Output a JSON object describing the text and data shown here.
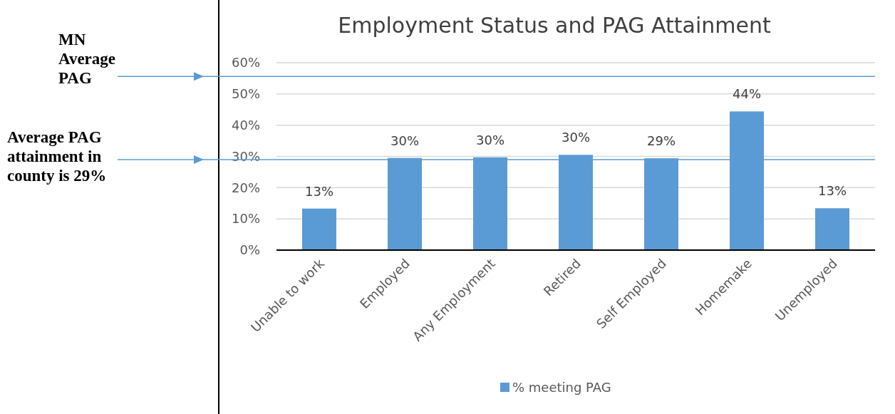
{
  "chart_data": {
    "type": "bar",
    "title": "Employment Status and PAG Attainment",
    "categories": [
      "Unable to work",
      "Employed",
      "Any Employment",
      "Retired",
      "Self Employed",
      "Homemake",
      "Unemployed"
    ],
    "series": [
      {
        "name": "% meeting PAG",
        "color": "#5b9bd5",
        "values": [
          13.3,
          29.5,
          29.7,
          30.5,
          29.4,
          44.4,
          13.4
        ],
        "value_labels": [
          "13%",
          "30%",
          "30%",
          "30%",
          "29%",
          "44%",
          "13%"
        ]
      }
    ],
    "ylim": [
      0,
      60
    ],
    "yticks": [
      {
        "value": 0,
        "label": "0%"
      },
      {
        "value": 10,
        "label": "10%"
      },
      {
        "value": 20,
        "label": "20%"
      },
      {
        "value": 30,
        "label": "30%"
      },
      {
        "value": 40,
        "label": "40%"
      },
      {
        "value": 50,
        "label": "50%"
      },
      {
        "value": 60,
        "label": "60%"
      }
    ],
    "grid": "y",
    "legend": "bottom",
    "ref_lines": [
      {
        "axis": "y",
        "value": 55.6,
        "label": "MN Average PAG",
        "color": "#5b9bd5"
      },
      {
        "axis": "y",
        "value": 29,
        "label": "Average PAG attainment in county is 29%",
        "color": "#5b9bd5"
      }
    ]
  }
}
